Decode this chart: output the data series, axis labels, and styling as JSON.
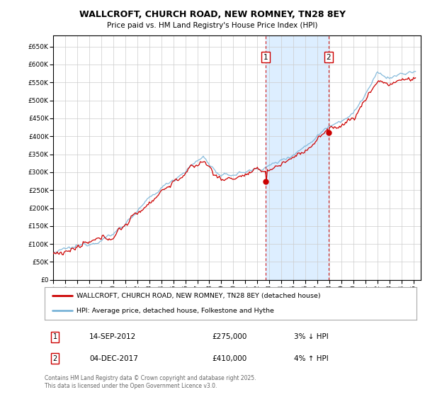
{
  "title": "WALLCROFT, CHURCH ROAD, NEW ROMNEY, TN28 8EY",
  "subtitle": "Price paid vs. HM Land Registry's House Price Index (HPI)",
  "ylim": [
    0,
    680000
  ],
  "yticks": [
    0,
    50000,
    100000,
    150000,
    200000,
    250000,
    300000,
    350000,
    400000,
    450000,
    500000,
    550000,
    600000,
    650000
  ],
  "xlim_start": 1995.0,
  "xlim_end": 2025.6,
  "xticks": [
    1995,
    1996,
    1997,
    1998,
    1999,
    2000,
    2001,
    2002,
    2003,
    2004,
    2005,
    2006,
    2007,
    2008,
    2009,
    2010,
    2011,
    2012,
    2013,
    2014,
    2015,
    2016,
    2017,
    2018,
    2019,
    2020,
    2021,
    2022,
    2023,
    2024,
    2025
  ],
  "hpi_line_color": "#7ab4d8",
  "property_line_color": "#cc0000",
  "purchase1_date": 2012.71,
  "purchase1_price": 275000,
  "purchase1_label": "1",
  "purchase2_date": 2017.92,
  "purchase2_price": 410000,
  "purchase2_label": "2",
  "shade_color": "#ddeeff",
  "vline_color": "#cc0000",
  "box_edge_color": "#cc0000",
  "legend_property": "WALLCROFT, CHURCH ROAD, NEW ROMNEY, TN28 8EY (detached house)",
  "legend_hpi": "HPI: Average price, detached house, Folkestone and Hythe",
  "annotation1_num": "1",
  "annotation1_date": "14-SEP-2012",
  "annotation1_price": "£275,000",
  "annotation1_hpi": "3% ↓ HPI",
  "annotation2_num": "2",
  "annotation2_date": "04-DEC-2017",
  "annotation2_price": "£410,000",
  "annotation2_hpi": "4% ↑ HPI",
  "footer": "Contains HM Land Registry data © Crown copyright and database right 2025.\nThis data is licensed under the Open Government Licence v3.0.",
  "background_color": "#ffffff",
  "grid_color": "#cccccc"
}
